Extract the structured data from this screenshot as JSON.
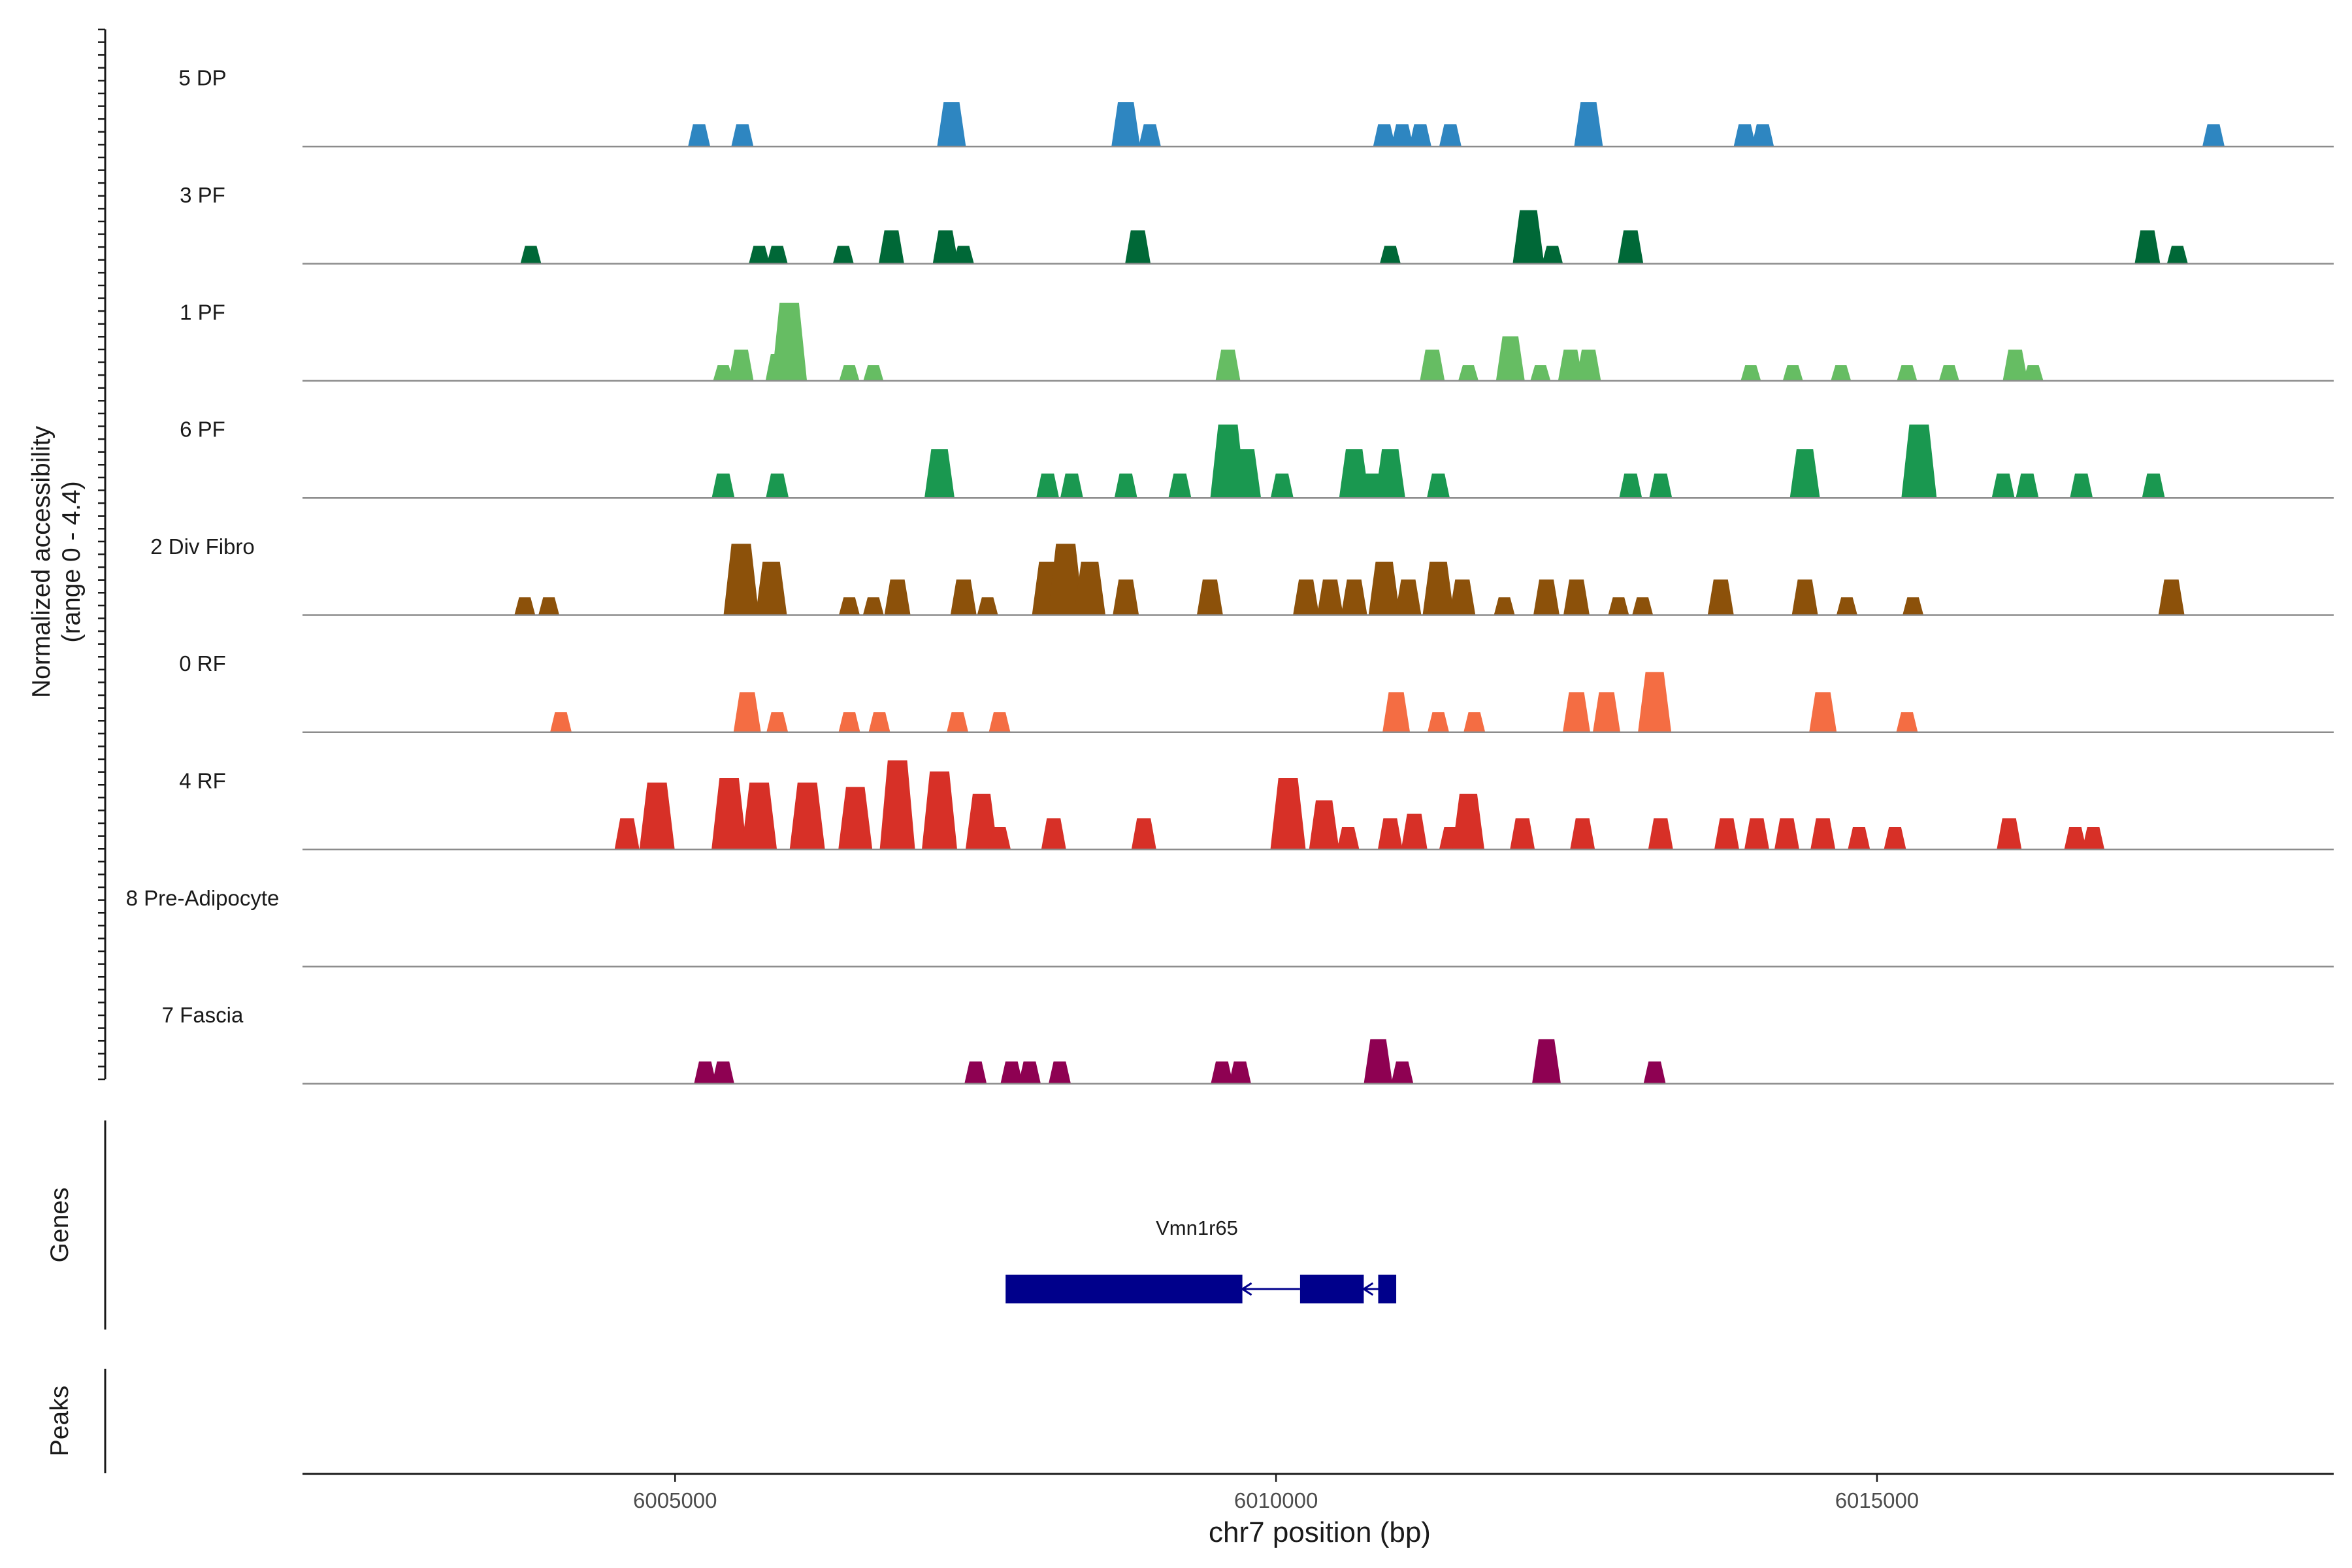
{
  "chart_data": {
    "type": "area",
    "title": "",
    "xlabel": "chr7 position (bp)",
    "ylabel_line1": "Normalized accessibility",
    "ylabel_line2": "(range 0 - 4.4)",
    "ylim": [
      0,
      4.4
    ],
    "xlim": [
      6001900,
      6018800
    ],
    "x_ticks": [
      6005000,
      6010000,
      6015000
    ],
    "x_tick_labels": [
      "6005000",
      "6010000",
      "6015000"
    ],
    "tracks": [
      {
        "name": "5 DP",
        "color": "#2E86C1",
        "peaks": [
          [
            6005200,
            1.0
          ],
          [
            6005560,
            1.0
          ],
          [
            6007300,
            2.0
          ],
          [
            6008750,
            2.0
          ],
          [
            6008950,
            1.0
          ],
          [
            6010900,
            1.0
          ],
          [
            6011050,
            1.0
          ],
          [
            6011200,
            1.0
          ],
          [
            6011450,
            1.0
          ],
          [
            6012600,
            2.0
          ],
          [
            6013900,
            1.0
          ],
          [
            6014050,
            1.0
          ],
          [
            6017800,
            1.0
          ]
        ]
      },
      {
        "name": "3 PF",
        "color": "#006837",
        "peaks": [
          [
            6003800,
            0.8
          ],
          [
            6005700,
            0.8
          ],
          [
            6005850,
            0.8
          ],
          [
            6006400,
            0.8
          ],
          [
            6006800,
            1.5
          ],
          [
            6007250,
            1.5
          ],
          [
            6007400,
            0.8
          ],
          [
            6008850,
            1.5
          ],
          [
            6010950,
            0.8
          ],
          [
            6012100,
            2.4
          ],
          [
            6012300,
            0.8
          ],
          [
            6012950,
            1.5
          ],
          [
            6017250,
            1.5
          ],
          [
            6017500,
            0.8
          ]
        ]
      },
      {
        "name": "1 PF",
        "color": "#66BD63",
        "peaks": [
          [
            6005400,
            0.7
          ],
          [
            6005550,
            1.4
          ],
          [
            6005850,
            1.2
          ],
          [
            6005950,
            3.5
          ],
          [
            6006450,
            0.7
          ],
          [
            6006650,
            0.7
          ],
          [
            6009600,
            1.4
          ],
          [
            6011300,
            1.4
          ],
          [
            6011600,
            0.7
          ],
          [
            6011950,
            2.0
          ],
          [
            6012200,
            0.7
          ],
          [
            6012450,
            1.4
          ],
          [
            6012600,
            1.4
          ],
          [
            6013950,
            0.7
          ],
          [
            6014300,
            0.7
          ],
          [
            6014700,
            0.7
          ],
          [
            6015250,
            0.7
          ],
          [
            6015600,
            0.7
          ],
          [
            6016150,
            1.4
          ],
          [
            6016300,
            0.7
          ]
        ]
      },
      {
        "name": "6 PF",
        "color": "#1A9850",
        "peaks": [
          [
            6005400,
            1.1
          ],
          [
            6005850,
            1.1
          ],
          [
            6007200,
            2.2
          ],
          [
            6008100,
            1.1
          ],
          [
            6008300,
            1.1
          ],
          [
            6008750,
            1.1
          ],
          [
            6009200,
            1.1
          ],
          [
            6009600,
            3.3
          ],
          [
            6009750,
            2.2
          ],
          [
            6010050,
            1.1
          ],
          [
            6010650,
            2.2
          ],
          [
            6010800,
            1.1
          ],
          [
            6010950,
            2.2
          ],
          [
            6011350,
            1.1
          ],
          [
            6012950,
            1.1
          ],
          [
            6013200,
            1.1
          ],
          [
            6014400,
            2.2
          ],
          [
            6015350,
            3.3
          ],
          [
            6016050,
            1.1
          ],
          [
            6016250,
            1.1
          ],
          [
            6016700,
            1.1
          ],
          [
            6017300,
            1.1
          ]
        ]
      },
      {
        "name": "2 Div Fibro",
        "color": "#8C510A",
        "peaks": [
          [
            6003750,
            0.8
          ],
          [
            6003950,
            0.8
          ],
          [
            6005550,
            3.2
          ],
          [
            6005800,
            2.4
          ],
          [
            6006450,
            0.8
          ],
          [
            6006650,
            0.8
          ],
          [
            6006850,
            1.6
          ],
          [
            6007400,
            1.6
          ],
          [
            6007600,
            0.8
          ],
          [
            6008100,
            2.4
          ],
          [
            6008250,
            3.2
          ],
          [
            6008450,
            2.4
          ],
          [
            6008750,
            1.6
          ],
          [
            6009450,
            1.6
          ],
          [
            6010250,
            1.6
          ],
          [
            6010450,
            1.6
          ],
          [
            6010650,
            1.6
          ],
          [
            6010900,
            2.4
          ],
          [
            6011100,
            1.6
          ],
          [
            6011350,
            2.4
          ],
          [
            6011550,
            1.6
          ],
          [
            6011900,
            0.8
          ],
          [
            6012250,
            1.6
          ],
          [
            6012500,
            1.6
          ],
          [
            6012850,
            0.8
          ],
          [
            6013050,
            0.8
          ],
          [
            6013700,
            1.6
          ],
          [
            6014400,
            1.6
          ],
          [
            6014750,
            0.8
          ],
          [
            6015300,
            0.8
          ],
          [
            6017450,
            1.6
          ]
        ]
      },
      {
        "name": "0 RF",
        "color": "#F46D43",
        "peaks": [
          [
            6004050,
            0.9
          ],
          [
            6005600,
            1.8
          ],
          [
            6005850,
            0.9
          ],
          [
            6006450,
            0.9
          ],
          [
            6006700,
            0.9
          ],
          [
            6007350,
            0.9
          ],
          [
            6007700,
            0.9
          ],
          [
            6011000,
            1.8
          ],
          [
            6011350,
            0.9
          ],
          [
            6011650,
            0.9
          ],
          [
            6012500,
            1.8
          ],
          [
            6012750,
            1.8
          ],
          [
            6013150,
            2.7
          ],
          [
            6014550,
            1.8
          ],
          [
            6015250,
            0.9
          ]
        ]
      },
      {
        "name": "4 RF",
        "color": "#D73027",
        "peaks": [
          [
            6004600,
            1.4
          ],
          [
            6004850,
            3.0
          ],
          [
            6005450,
            3.2
          ],
          [
            6005700,
            3.0
          ],
          [
            6006100,
            3.0
          ],
          [
            6006500,
            2.8
          ],
          [
            6006850,
            4.0
          ],
          [
            6007200,
            3.5
          ],
          [
            6007550,
            2.5
          ],
          [
            6007700,
            1.0
          ],
          [
            6008150,
            1.4
          ],
          [
            6008900,
            1.4
          ],
          [
            6010100,
            3.2
          ],
          [
            6010400,
            2.2
          ],
          [
            6010600,
            1.0
          ],
          [
            6010950,
            1.4
          ],
          [
            6011150,
            1.6
          ],
          [
            6011450,
            1.0
          ],
          [
            6011600,
            2.5
          ],
          [
            6012050,
            1.4
          ],
          [
            6012550,
            1.4
          ],
          [
            6013200,
            1.4
          ],
          [
            6013750,
            1.4
          ],
          [
            6014000,
            1.4
          ],
          [
            6014250,
            1.4
          ],
          [
            6014550,
            1.4
          ],
          [
            6014850,
            1.0
          ],
          [
            6015150,
            1.0
          ],
          [
            6016100,
            1.4
          ],
          [
            6016650,
            1.0
          ],
          [
            6016800,
            1.0
          ]
        ]
      },
      {
        "name": "8 Pre-Adipocyte",
        "color": "#7F7F7F",
        "peaks": []
      },
      {
        "name": "7 Fascia",
        "color": "#8E0152",
        "peaks": [
          [
            6005250,
            1.0
          ],
          [
            6005400,
            1.0
          ],
          [
            6007500,
            1.0
          ],
          [
            6007800,
            1.0
          ],
          [
            6007950,
            1.0
          ],
          [
            6008200,
            1.0
          ],
          [
            6009550,
            1.0
          ],
          [
            6009700,
            1.0
          ],
          [
            6010850,
            2.0
          ],
          [
            6011050,
            1.0
          ],
          [
            6012250,
            2.0
          ],
          [
            6013150,
            1.0
          ]
        ]
      }
    ],
    "genes_label": "Genes",
    "peaks_label": "Peaks",
    "gene": {
      "name": "Vmn1r65",
      "color": "#00008B",
      "strand": "-",
      "exons": [
        [
          6007750,
          6009720
        ],
        [
          6010200,
          6010730
        ],
        [
          6010850,
          6011000
        ]
      ]
    }
  }
}
